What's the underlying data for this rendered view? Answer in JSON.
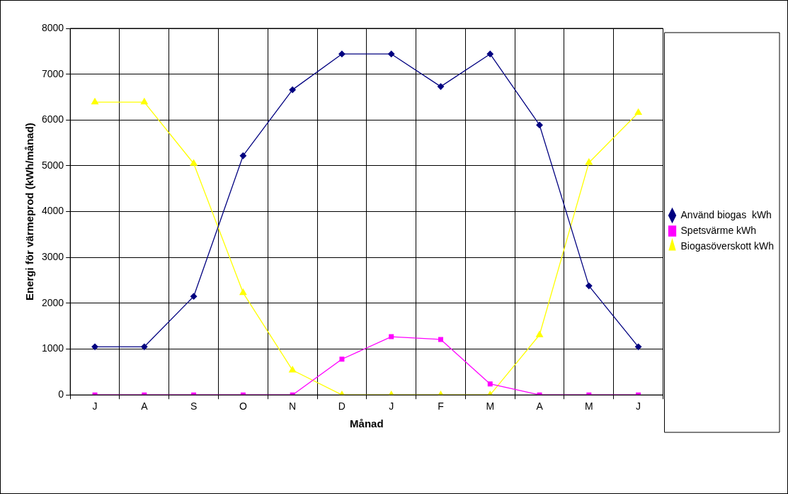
{
  "chart_data": {
    "type": "line",
    "xlabel": "Månad",
    "ylabel": "Energi för värmeprod (kWh/månad)",
    "categories": [
      "J",
      "A",
      "S",
      "O",
      "N",
      "D",
      "J",
      "F",
      "M",
      "A",
      "M",
      "J"
    ],
    "series": [
      {
        "name": "Använd biogas  kWh",
        "color": "#000080",
        "marker": "diamond",
        "values": [
          1050,
          1050,
          2150,
          5220,
          6660,
          7440,
          7440,
          6730,
          7440,
          5890,
          2380,
          1050
        ]
      },
      {
        "name": "Spetsvärme kWh",
        "color": "#ff00ff",
        "marker": "square",
        "values": [
          0,
          0,
          0,
          0,
          0,
          780,
          1270,
          1210,
          240,
          0,
          0,
          0
        ]
      },
      {
        "name": "Biogasöverskott kWh",
        "color": "#ffff00",
        "marker": "triangle",
        "values": [
          6390,
          6390,
          5050,
          2230,
          540,
          0,
          0,
          0,
          0,
          1310,
          5070,
          6160
        ]
      }
    ],
    "ylim": [
      0,
      8000
    ],
    "yticks": [
      0,
      1000,
      2000,
      3000,
      4000,
      5000,
      6000,
      7000,
      8000
    ],
    "grid": true,
    "legend": "right"
  }
}
